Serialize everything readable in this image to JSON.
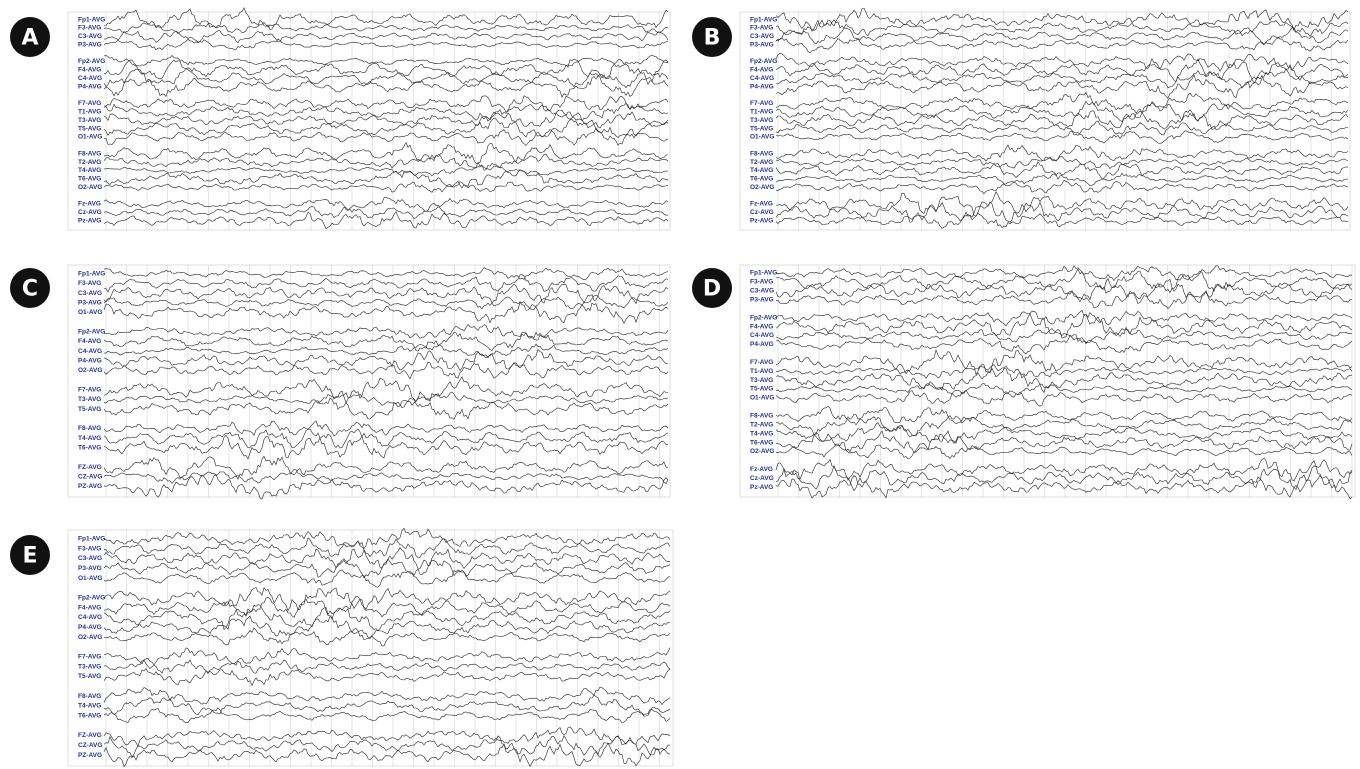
{
  "panels": [
    {
      "label": "A",
      "groups": [
        [
          "Fp1-AVG",
          "F3-AVG",
          "C3-AVG",
          "P3-AVG"
        ],
        [
          "Fp2-AVG",
          "F4-AVG",
          "C4-AVG",
          "P4-AVG"
        ],
        [
          "F7-AVG",
          "T1-AVG",
          "T3-AVG",
          "T5-AVG",
          "O1-AVG"
        ],
        [
          "F8-AVG",
          "T2-AVG",
          "T4-AVG",
          "T6-AVG",
          "O2-AVG"
        ],
        [
          "Fz-AVG",
          "Cz-AVG",
          "Pz-AVG"
        ]
      ]
    },
    {
      "label": "B",
      "groups": [
        [
          "Fp1-AVG",
          "F3-AVG",
          "C3-AVG",
          "P3-AVG"
        ],
        [
          "Fp2-AVG",
          "F4-AVG",
          "C4-AVG",
          "P4-AVG"
        ],
        [
          "F7-AVG",
          "T1-AVG",
          "T3-AVG",
          "T5-AVG",
          "O1-AVG"
        ],
        [
          "F8-AVG",
          "T2-AVG",
          "T4-AVG",
          "T6-AVG",
          "O2-AVG"
        ],
        [
          "Fz-AVG",
          "Cz-AVG",
          "Pz-AVG"
        ]
      ]
    },
    {
      "label": "C",
      "groups": [
        [
          "Fp1-AVG",
          "F3-AVG",
          "C3-AVG",
          "P3-AVG",
          "O1-AVG"
        ],
        [
          "Fp2-AVG",
          "F4-AVG",
          "C4-AVG",
          "P4-AVG",
          "O2-AVG"
        ],
        [
          "F7-AVG",
          "T3-AVG",
          "T5-AVG"
        ],
        [
          "F8-AVG",
          "T4-AVG",
          "T6-AVG"
        ],
        [
          "FZ-AVG",
          "CZ-AVG",
          "PZ-AVG"
        ]
      ]
    },
    {
      "label": "D",
      "groups": [
        [
          "Fp1-AVG",
          "F3-AVG",
          "C3-AVG",
          "P3-AVG"
        ],
        [
          "Fp2-AVG",
          "F4-AVG",
          "C4-AVG",
          "P4-AVG"
        ],
        [
          "F7-AVG",
          "T1-AVG",
          "T3-AVG",
          "T5-AVG",
          "O1-AVG"
        ],
        [
          "F8-AVG",
          "T2-AVG",
          "T4-AVG",
          "T6-AVG",
          "O2-AVG"
        ],
        [
          "Fz-AVG",
          "Cz-AVG",
          "Pz-AVG"
        ]
      ]
    },
    {
      "label": "E",
      "groups": [
        [
          "Fp1-AVG",
          "F3-AVG",
          "C3-AVG",
          "P3-AVG",
          "O1-AVG"
        ],
        [
          "Fp2-AVG",
          "F4-AVG",
          "C4-AVG",
          "P4-AVG",
          "O2-AVG"
        ],
        [
          "F7-AVG",
          "T3-AVG",
          "T5-AVG"
        ],
        [
          "F8-AVG",
          "T4-AVG",
          "T6-AVG"
        ],
        [
          "FZ-AVG",
          "CZ-AVG",
          "PZ-AVG"
        ]
      ]
    }
  ]
}
